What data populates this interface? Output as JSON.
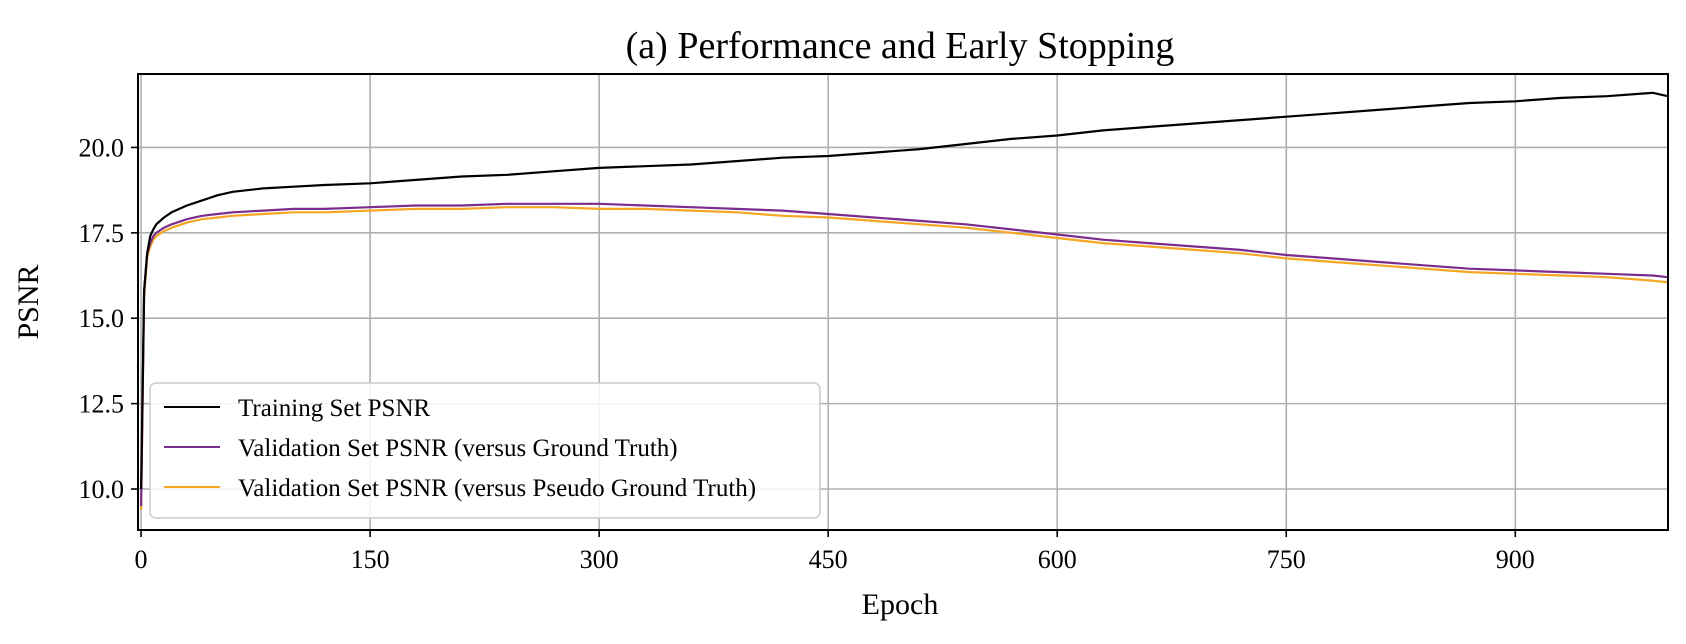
{
  "chart_data": {
    "type": "line",
    "title": "(a) Performance and Early Stopping",
    "xlabel": "Epoch",
    "ylabel": "PSNR",
    "xlim": [
      -2,
      1000
    ],
    "ylim": [
      8.8,
      22.15
    ],
    "xticks": [
      0,
      150,
      300,
      450,
      600,
      750,
      900
    ],
    "xtick_labels": [
      "0",
      "150",
      "300",
      "450",
      "600",
      "750",
      "900"
    ],
    "yticks": [
      10.0,
      12.5,
      15.0,
      17.5,
      20.0
    ],
    "ytick_labels": [
      "10.0",
      "12.5",
      "15.0",
      "17.5",
      "20.0"
    ],
    "grid": true,
    "legend_position": "lower-left",
    "series": [
      {
        "name": "Training Set PSNR",
        "color": "#000000",
        "x": [
          0,
          2,
          4,
          6,
          8,
          10,
          15,
          20,
          30,
          40,
          50,
          60,
          80,
          100,
          120,
          150,
          180,
          210,
          240,
          270,
          300,
          330,
          360,
          390,
          420,
          450,
          480,
          510,
          540,
          570,
          600,
          630,
          660,
          690,
          720,
          750,
          780,
          810,
          840,
          870,
          900,
          930,
          960,
          990,
          1000
        ],
        "y": [
          10.0,
          15.8,
          16.9,
          17.4,
          17.6,
          17.75,
          17.95,
          18.1,
          18.3,
          18.45,
          18.6,
          18.7,
          18.8,
          18.85,
          18.9,
          18.95,
          19.05,
          19.15,
          19.2,
          19.3,
          19.4,
          19.45,
          19.5,
          19.6,
          19.7,
          19.75,
          19.85,
          19.95,
          20.1,
          20.25,
          20.35,
          20.5,
          20.6,
          20.7,
          20.8,
          20.9,
          21.0,
          21.1,
          21.2,
          21.3,
          21.35,
          21.45,
          21.5,
          21.6,
          21.5
        ]
      },
      {
        "name": "Validation Set PSNR (versus Ground Truth)",
        "color": "#7b2d8e",
        "x": [
          0,
          2,
          4,
          6,
          8,
          10,
          15,
          20,
          30,
          40,
          50,
          60,
          80,
          100,
          120,
          150,
          180,
          210,
          240,
          270,
          300,
          330,
          360,
          390,
          420,
          450,
          480,
          510,
          540,
          570,
          600,
          630,
          660,
          690,
          720,
          750,
          780,
          810,
          840,
          870,
          900,
          930,
          960,
          990,
          1000
        ],
        "y": [
          9.5,
          15.8,
          16.9,
          17.2,
          17.4,
          17.5,
          17.65,
          17.75,
          17.9,
          18.0,
          18.05,
          18.1,
          18.15,
          18.2,
          18.2,
          18.25,
          18.3,
          18.3,
          18.35,
          18.35,
          18.35,
          18.3,
          18.25,
          18.2,
          18.15,
          18.05,
          17.95,
          17.85,
          17.75,
          17.6,
          17.45,
          17.3,
          17.2,
          17.1,
          17.0,
          16.85,
          16.75,
          16.65,
          16.55,
          16.45,
          16.4,
          16.35,
          16.3,
          16.25,
          16.2
        ]
      },
      {
        "name": "Validation Set PSNR (versus Pseudo Ground Truth)",
        "color": "#f5a623",
        "x": [
          0,
          2,
          4,
          6,
          8,
          10,
          15,
          20,
          30,
          40,
          50,
          60,
          80,
          100,
          120,
          150,
          180,
          210,
          240,
          270,
          300,
          330,
          360,
          390,
          420,
          450,
          480,
          510,
          540,
          570,
          600,
          630,
          660,
          690,
          720,
          750,
          780,
          810,
          840,
          870,
          900,
          930,
          960,
          990,
          1000
        ],
        "y": [
          9.4,
          15.6,
          16.8,
          17.1,
          17.3,
          17.4,
          17.55,
          17.65,
          17.8,
          17.9,
          17.95,
          18.0,
          18.05,
          18.1,
          18.1,
          18.15,
          18.2,
          18.2,
          18.25,
          18.25,
          18.2,
          18.2,
          18.15,
          18.1,
          18.0,
          17.95,
          17.85,
          17.75,
          17.65,
          17.5,
          17.35,
          17.2,
          17.1,
          17.0,
          16.9,
          16.75,
          16.65,
          16.55,
          16.45,
          16.35,
          16.3,
          16.25,
          16.2,
          16.1,
          16.05
        ]
      }
    ]
  }
}
